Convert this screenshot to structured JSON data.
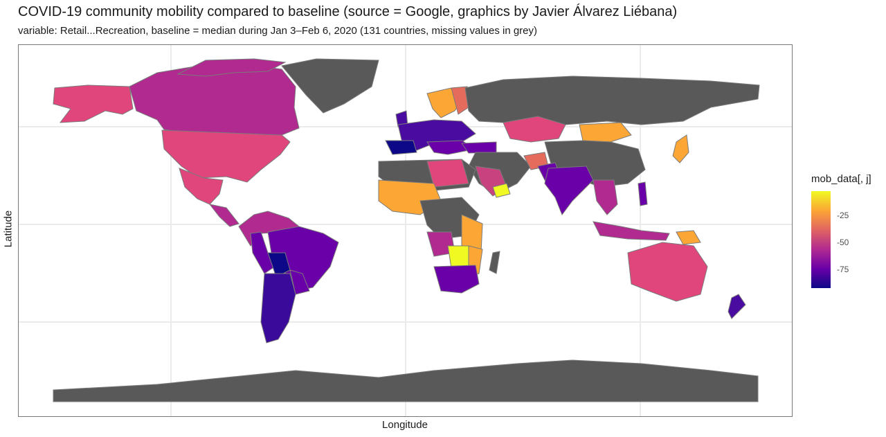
{
  "title": "COVID-19 community mobility compared to baseline (source = Google, graphics by Javier Álvarez Liébana)",
  "subtitle": "variable: Retail...Recreation, baseline = median during Jan 3–Feb 6, 2020 (131 countries, missing values in grey)",
  "axes": {
    "xlabel": "Longitude",
    "ylabel": "Latitude"
  },
  "legend": {
    "title": "mob_data[, j]",
    "ticks": [
      "-25",
      "-50",
      "-75"
    ],
    "palette": [
      "#f0f921",
      "#fca636",
      "#e16462",
      "#b12a90",
      "#6a00a8",
      "#0d0887"
    ]
  },
  "colors": {
    "missing": "#595959",
    "grid": "#ebebeb",
    "panel_border": "#777777",
    "country_border": "#7a7a7a"
  },
  "chart_data": {
    "type": "choropleth map",
    "variable": "Retail...Recreation",
    "missing_color": "grey",
    "legend_range": [
      -90,
      -10
    ],
    "grid": true,
    "legend_position": "right"
  }
}
